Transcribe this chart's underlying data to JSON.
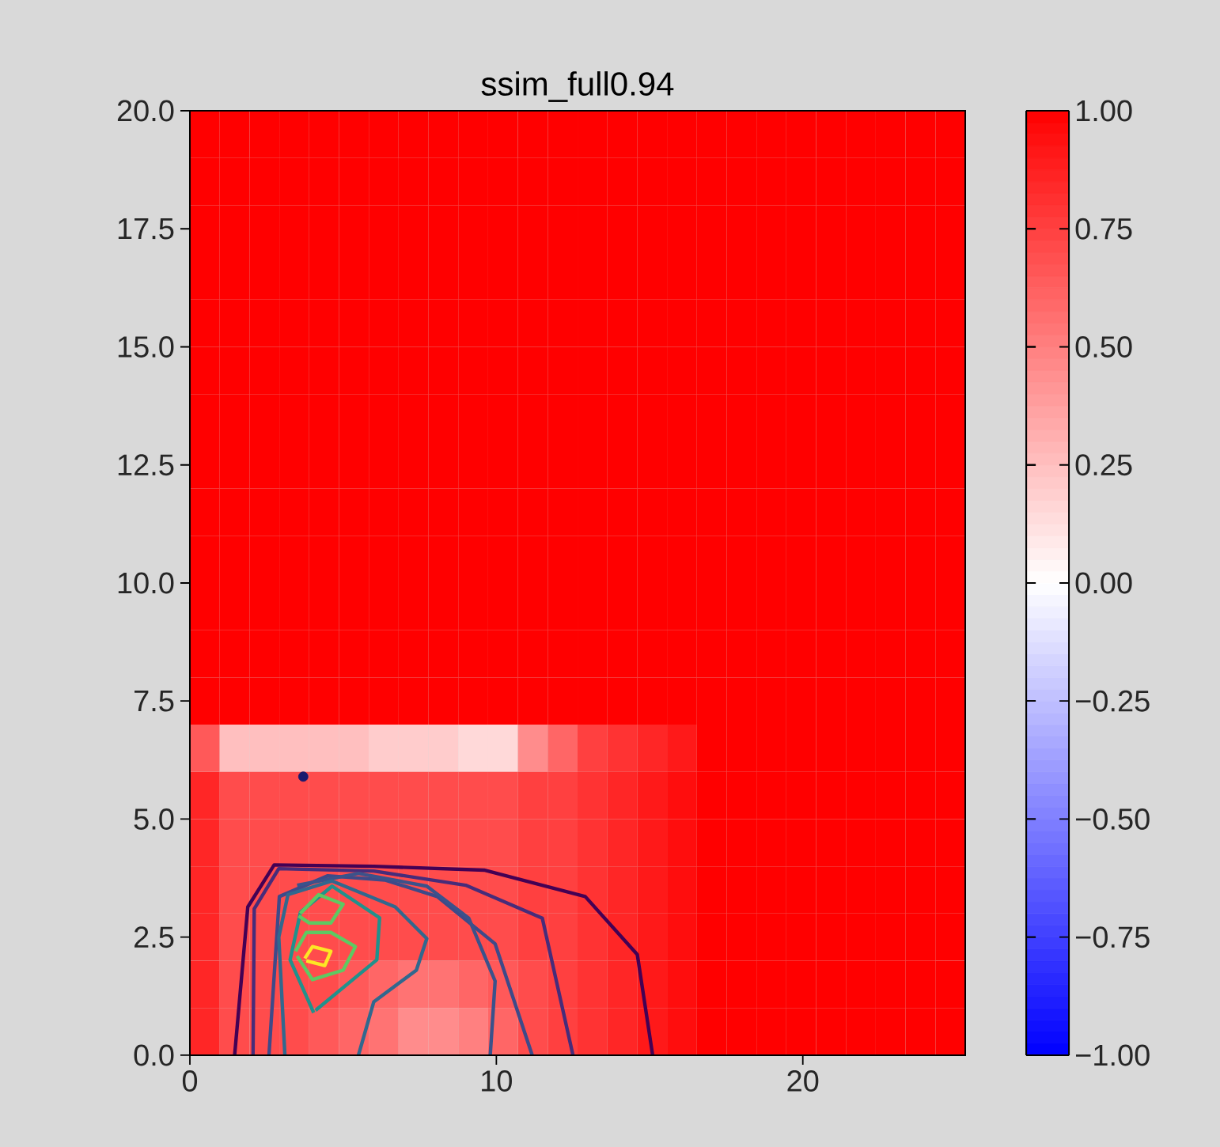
{
  "chart_data": {
    "type": "heatmap",
    "title": "ssim_full0.94",
    "cells": [
      [
        1,
        1,
        1,
        1,
        1,
        1,
        1,
        1,
        1,
        1,
        1,
        1,
        1,
        1,
        1,
        1,
        1,
        1,
        1,
        1,
        1,
        1,
        1,
        1,
        1,
        1
      ],
      [
        1,
        1,
        1,
        1,
        1,
        1,
        1,
        1,
        1,
        1,
        1,
        1,
        1,
        1,
        1,
        1,
        1,
        1,
        1,
        1,
        1,
        1,
        1,
        1,
        1,
        1
      ],
      [
        1,
        1,
        1,
        1,
        1,
        1,
        1,
        1,
        1,
        1,
        1,
        1,
        1,
        1,
        1,
        1,
        1,
        1,
        1,
        1,
        1,
        1,
        1,
        1,
        1,
        1
      ],
      [
        1,
        1,
        1,
        1,
        1,
        1,
        1,
        1,
        1,
        1,
        1,
        1,
        1,
        1,
        1,
        1,
        1,
        1,
        1,
        1,
        1,
        1,
        1,
        1,
        1,
        1
      ],
      [
        1,
        1,
        1,
        1,
        1,
        1,
        1,
        1,
        1,
        1,
        1,
        1,
        1,
        1,
        1,
        1,
        1,
        1,
        1,
        1,
        1,
        1,
        1,
        1,
        1,
        1
      ],
      [
        1,
        1,
        1,
        1,
        1,
        1,
        1,
        1,
        1,
        1,
        1,
        1,
        1,
        1,
        1,
        1,
        1,
        1,
        1,
        1,
        1,
        1,
        1,
        1,
        1,
        1
      ],
      [
        1,
        1,
        1,
        1,
        1,
        1,
        1,
        1,
        1,
        1,
        1,
        1,
        1,
        1,
        1,
        1,
        1,
        1,
        1,
        1,
        1,
        1,
        1,
        1,
        1,
        1
      ],
      [
        1,
        1,
        1,
        1,
        1,
        1,
        1,
        1,
        1,
        1,
        1,
        1,
        1,
        1,
        1,
        1,
        1,
        1,
        1,
        1,
        1,
        1,
        1,
        1,
        1,
        1
      ],
      [
        1,
        1,
        1,
        1,
        1,
        1,
        1,
        1,
        1,
        1,
        1,
        1,
        1,
        1,
        1,
        1,
        1,
        1,
        1,
        1,
        1,
        1,
        1,
        1,
        1,
        1
      ],
      [
        1,
        1,
        1,
        1,
        1,
        1,
        1,
        1,
        1,
        1,
        1,
        1,
        1,
        1,
        1,
        1,
        1,
        1,
        1,
        1,
        1,
        1,
        1,
        1,
        1,
        1
      ],
      [
        1,
        1,
        1,
        1,
        1,
        1,
        1,
        1,
        1,
        1,
        1,
        1,
        1,
        1,
        1,
        1,
        1,
        1,
        1,
        1,
        1,
        1,
        1,
        1,
        1,
        1
      ],
      [
        1,
        1,
        1,
        1,
        1,
        1,
        1,
        1,
        1,
        1,
        1,
        1,
        1,
        1,
        1,
        1,
        1,
        1,
        1,
        1,
        1,
        1,
        1,
        1,
        1,
        1
      ],
      [
        1,
        1,
        1,
        1,
        1,
        1,
        1,
        1,
        1,
        1,
        1,
        1,
        1,
        1,
        1,
        1,
        1,
        1,
        1,
        1,
        1,
        1,
        1,
        1,
        1,
        1
      ],
      [
        0.65,
        0.25,
        0.25,
        0.25,
        0.25,
        0.25,
        0.2,
        0.2,
        0.2,
        0.15,
        0.15,
        0.45,
        0.6,
        0.75,
        0.8,
        0.85,
        0.9,
        1,
        1,
        1,
        1,
        1,
        1,
        1,
        1,
        1
      ],
      [
        0.85,
        0.7,
        0.7,
        0.7,
        0.7,
        0.7,
        0.7,
        0.7,
        0.7,
        0.7,
        0.7,
        0.75,
        0.75,
        0.8,
        0.85,
        0.9,
        0.95,
        1,
        1,
        1,
        1,
        1,
        1,
        1,
        1,
        1
      ],
      [
        0.85,
        0.7,
        0.7,
        0.7,
        0.7,
        0.7,
        0.7,
        0.7,
        0.7,
        0.7,
        0.7,
        0.75,
        0.75,
        0.8,
        0.85,
        0.9,
        0.95,
        1,
        1,
        1,
        1,
        1,
        1,
        1,
        1,
        1
      ],
      [
        0.85,
        0.7,
        0.7,
        0.7,
        0.7,
        0.7,
        0.7,
        0.7,
        0.7,
        0.7,
        0.7,
        0.75,
        0.75,
        0.8,
        0.85,
        0.9,
        0.95,
        1,
        1,
        1,
        1,
        1,
        1,
        1,
        1,
        1
      ],
      [
        0.85,
        0.7,
        0.7,
        0.7,
        0.7,
        0.7,
        0.7,
        0.7,
        0.7,
        0.7,
        0.7,
        0.75,
        0.75,
        0.8,
        0.85,
        0.9,
        0.95,
        1,
        1,
        1,
        1,
        1,
        1,
        1,
        1,
        1
      ],
      [
        0.85,
        0.7,
        0.7,
        0.7,
        0.7,
        0.65,
        0.6,
        0.55,
        0.55,
        0.6,
        0.65,
        0.7,
        0.75,
        0.8,
        0.85,
        0.9,
        0.95,
        1,
        1,
        1,
        1,
        1,
        1,
        1,
        1,
        1
      ],
      [
        0.85,
        0.7,
        0.7,
        0.7,
        0.65,
        0.6,
        0.55,
        0.45,
        0.45,
        0.5,
        0.6,
        0.7,
        0.75,
        0.8,
        0.85,
        0.9,
        0.95,
        1,
        1,
        1,
        1,
        1,
        1,
        1,
        1,
        1
      ]
    ],
    "clim": [
      -1,
      1
    ],
    "cticks": [
      {
        "value": 1,
        "label": "1.00"
      },
      {
        "value": 0.75,
        "label": "0.75"
      },
      {
        "value": 0.5,
        "label": "0.50"
      },
      {
        "value": 0.25,
        "label": "0.25"
      },
      {
        "value": 0,
        "label": "0.00"
      },
      {
        "value": -0.25,
        "label": "−0.25"
      },
      {
        "value": -0.5,
        "label": "−0.50"
      },
      {
        "value": -0.75,
        "label": "−0.75"
      },
      {
        "value": -1,
        "label": "−1.00"
      }
    ],
    "xlim": [
      0,
      25.3
    ],
    "ylim": [
      0,
      20
    ],
    "xticks": [
      0,
      10,
      20
    ],
    "yticks": [
      {
        "value": 0,
        "label": "0.0"
      },
      {
        "value": 2.5,
        "label": "2.5"
      },
      {
        "value": 5,
        "label": "5.0"
      },
      {
        "value": 7.5,
        "label": "7.5"
      },
      {
        "value": 10,
        "label": "10.0"
      },
      {
        "value": 12.5,
        "label": "12.5"
      },
      {
        "value": 15,
        "label": "15.0"
      },
      {
        "value": 17.5,
        "label": "17.5"
      },
      {
        "value": 20,
        "label": "20.0"
      }
    ],
    "series": [
      {
        "type": "line",
        "color": "#440154",
        "x": [
          1.46,
          1.89,
          2.75,
          6.0,
          9.6,
          12.9,
          14.6,
          15.1
        ],
        "values": [
          0,
          3.14,
          4.03,
          4.0,
          3.92,
          3.36,
          2.13,
          0
        ]
      },
      {
        "type": "line",
        "color": "#472c7a",
        "x": [
          2.06,
          2.1,
          2.9,
          6.0,
          9.0,
          11.5,
          12.5
        ],
        "values": [
          0,
          3.1,
          3.95,
          3.9,
          3.6,
          2.9,
          0
        ]
      },
      {
        "type": "line",
        "color": "#3e4a89",
        "x": [
          2.58,
          2.92,
          4.5,
          6.36,
          8.07,
          9.96,
          11.17
        ],
        "values": [
          0,
          3.36,
          3.8,
          3.71,
          3.36,
          2.36,
          0
        ]
      },
      {
        "type": "line",
        "color": "#3b528b",
        "x": [
          9.8,
          9.96,
          9.1,
          7.73,
          5.5,
          3.5
        ],
        "values": [
          0,
          1.57,
          2.9,
          3.58,
          3.85,
          3.6
        ]
      },
      {
        "type": "line",
        "color": "#31688e",
        "x": [
          5.5,
          6.0,
          7.39,
          7.73,
          6.7,
          4.64,
          3.2,
          2.9,
          3.1
        ],
        "values": [
          0,
          1.13,
          1.8,
          2.47,
          3.14,
          3.69,
          3.4,
          2.5,
          0
        ]
      },
      {
        "type": "line",
        "color": "#21918c",
        "x": [
          4.04,
          3.27,
          3.61,
          4.64,
          6.19,
          6.1,
          4.1
        ],
        "values": [
          0.9,
          2.02,
          3.03,
          3.58,
          2.91,
          2.02,
          0.95
        ]
      },
      {
        "type": "line",
        "color": "#5ec962",
        "x": [
          3.5,
          4.0,
          5.0,
          5.4,
          4.6,
          3.8,
          3.45
        ],
        "values": [
          2.1,
          1.6,
          1.8,
          2.3,
          2.6,
          2.6,
          2.2
        ]
      },
      {
        "type": "line",
        "color": "#5ec962",
        "x": [
          3.6,
          4.2,
          5.0,
          4.6,
          3.9,
          3.55
        ],
        "values": [
          3.0,
          3.4,
          3.2,
          2.8,
          2.8,
          2.95
        ]
      },
      {
        "type": "line",
        "color": "#fde725",
        "x": [
          3.8,
          4.4,
          4.6,
          4.0,
          3.75
        ],
        "values": [
          2.0,
          1.9,
          2.2,
          2.3,
          2.05
        ]
      },
      {
        "type": "scatter",
        "color": "#1a1a6e",
        "marker": "circle",
        "x": [
          3.7
        ],
        "values": [
          5.9
        ]
      }
    ]
  }
}
